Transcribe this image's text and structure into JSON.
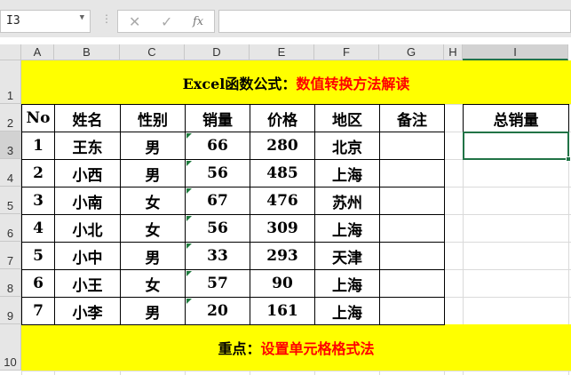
{
  "namebox": "I3",
  "formula_icons": [
    "cancel-icon",
    "confirm-icon",
    "fx-icon"
  ],
  "fx": "fx",
  "columns": [
    "A",
    "B",
    "C",
    "D",
    "E",
    "F",
    "G",
    "H",
    "I"
  ],
  "rows": [
    "1",
    "2",
    "3",
    "4",
    "5",
    "6",
    "7",
    "8",
    "9",
    "10"
  ],
  "title": {
    "black": "Excel函数公式：",
    "red": "数值转换方法解读"
  },
  "headers": [
    "No",
    "姓名",
    "性别",
    "销量",
    "价格",
    "地区",
    "备注"
  ],
  "total_header": "总销量",
  "data": [
    [
      "1",
      "王东",
      "男",
      "66",
      "280",
      "北京",
      ""
    ],
    [
      "2",
      "小西",
      "男",
      "56",
      "485",
      "上海",
      ""
    ],
    [
      "3",
      "小南",
      "女",
      "67",
      "476",
      "苏州",
      ""
    ],
    [
      "4",
      "小北",
      "女",
      "56",
      "309",
      "上海",
      ""
    ],
    [
      "5",
      "小中",
      "男",
      "33",
      "293",
      "天津",
      ""
    ],
    [
      "6",
      "小王",
      "女",
      "57",
      "90",
      "上海",
      ""
    ],
    [
      "7",
      "小李",
      "男",
      "20",
      "161",
      "上海",
      ""
    ]
  ],
  "footer": {
    "black": "重点：",
    "red": "设置单元格格式法"
  },
  "colors": {
    "banner": "#ffff00",
    "accent_red": "#ff0000",
    "selection": "#217346"
  }
}
